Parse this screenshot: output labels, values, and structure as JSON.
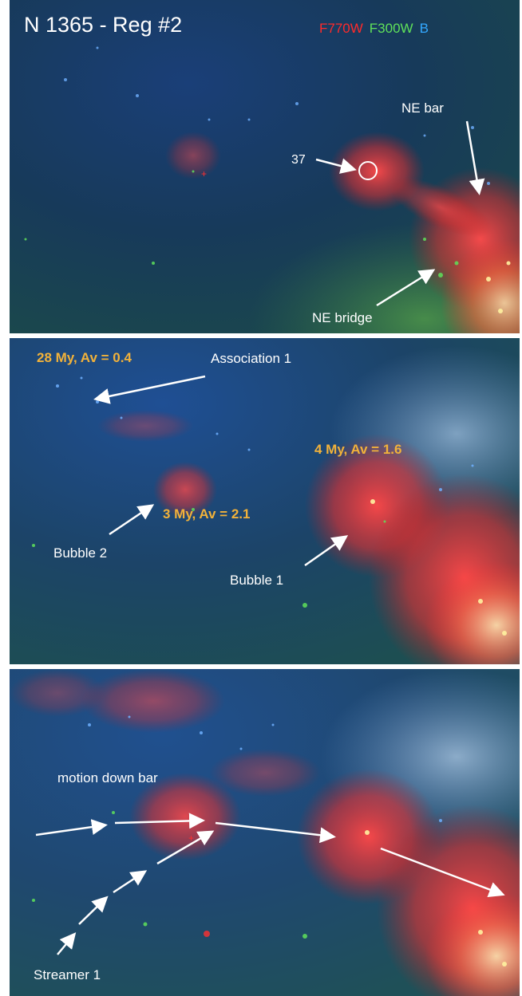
{
  "panel1": {
    "title": "N 1365 - Reg #2",
    "legend": {
      "red_label": "F770W",
      "green_label": "F300W",
      "blue_label": "B",
      "red_color": "#ff2a2a",
      "green_color": "#5fe05a",
      "blue_color": "#33a8ff"
    },
    "label_37": "37",
    "label_ne_bar": "NE bar",
    "label_ne_bridge": "NE bridge"
  },
  "panel2": {
    "assoc_age": "28 My,  Av = 0.4",
    "assoc_label": "Association 1",
    "bubble1_age": "4 My,  Av = 1.6",
    "bubble2_age": "3 My,  Av = 2.1",
    "bubble2_label": "Bubble 2",
    "bubble1_label": "Bubble 1",
    "age_color": "#f2b23a"
  },
  "panel3": {
    "motion_label": "motion down bar",
    "streamer_label": "Streamer 1"
  }
}
